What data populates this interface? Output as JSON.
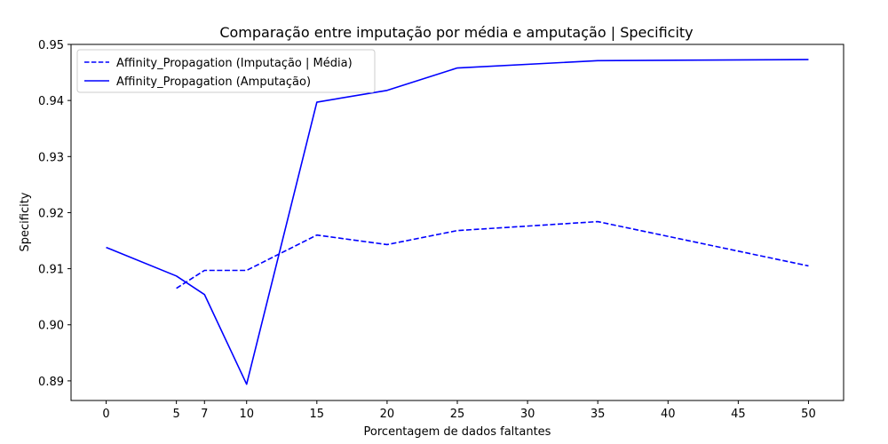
{
  "chart_data": {
    "type": "line",
    "title": "Comparação entre imputação por média e amputação | Specificity",
    "xlabel": "Porcentagem de dados faltantes",
    "ylabel": "Specificity",
    "xlim": [
      -2.5,
      52.5
    ],
    "ylim": [
      0.8865,
      0.95
    ],
    "xticks": [
      0,
      5,
      7,
      10,
      15,
      20,
      25,
      30,
      35,
      40,
      45,
      50
    ],
    "yticks": [
      "0.89",
      "0.90",
      "0.91",
      "0.92",
      "0.93",
      "0.94",
      "0.95"
    ],
    "grid": false,
    "legend_position": "top-left",
    "series": [
      {
        "name": "Affinity_Propagation (Imputação | Média)",
        "style": "dashed",
        "color": "#0000ff",
        "x": [
          5,
          7,
          10,
          15,
          20,
          25,
          35,
          50
        ],
        "y": [
          0.9065,
          0.9097,
          0.9097,
          0.916,
          0.9143,
          0.9168,
          0.9184,
          0.9105
        ]
      },
      {
        "name": "Affinity_Propagation (Amputação)",
        "style": "solid",
        "color": "#0000ff",
        "x": [
          0,
          5,
          7,
          10,
          15,
          20,
          25,
          35,
          50
        ],
        "y": [
          0.9138,
          0.9087,
          0.9054,
          0.8894,
          0.9397,
          0.9418,
          0.9458,
          0.9471,
          0.9473
        ]
      }
    ]
  }
}
